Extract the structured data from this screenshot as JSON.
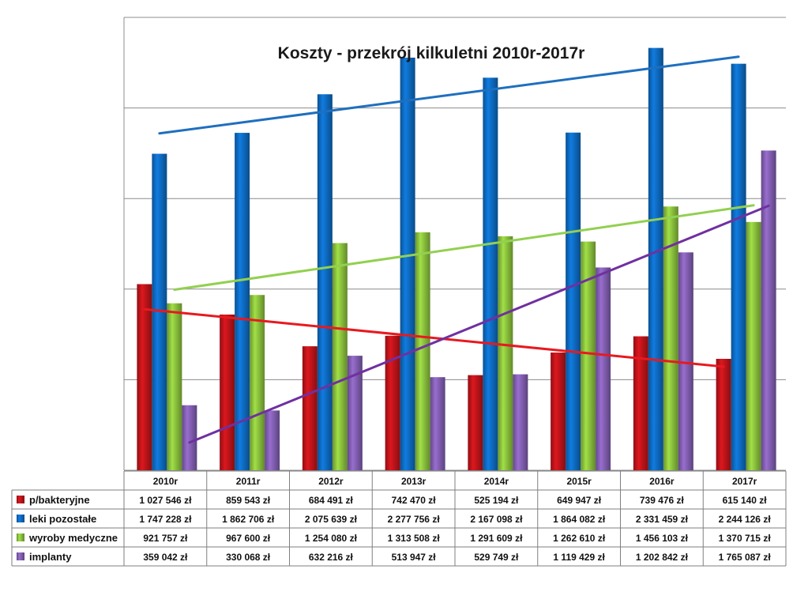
{
  "chart_data": {
    "type": "bar",
    "title": "Koszty - przekrój kilkuletni 2010r-2017r",
    "categories": [
      "2010r",
      "2011r",
      "2012r",
      "2013r",
      "2014r",
      "2015r",
      "2016r",
      "2017r"
    ],
    "ylim": [
      0,
      2500000
    ],
    "grid": true,
    "legend": "data-table-below",
    "trendlines": true,
    "series": [
      {
        "name": "p/bakteryjne",
        "color": "#c0141a",
        "values": [
          1027546,
          859543,
          684491,
          742470,
          525194,
          649947,
          739476,
          615140
        ],
        "labels": [
          "1 027 546 zł",
          "859 543 zł",
          "684 491 zł",
          "742 470 zł",
          "525 194 zł",
          "649 947 zł",
          "739 476 zł",
          "615 140 zł"
        ],
        "trend_color": "#e8191f"
      },
      {
        "name": "leki pozostałe",
        "color": "#0e6cc4",
        "values": [
          1747228,
          1862706,
          2075639,
          2277756,
          2167098,
          1864082,
          2331459,
          2244126
        ],
        "labels": [
          "1 747 228 zł",
          "1 862 706 zł",
          "2 075 639 zł",
          "2 277 756 zł",
          "2 167 098 zł",
          "1 864 082 zł",
          "2 331 459 zł",
          "2 244 126 zł"
        ],
        "trend_color": "#1f6fbf"
      },
      {
        "name": "wyroby medyczne",
        "color": "#8cc33e",
        "values": [
          921757,
          967600,
          1254080,
          1313508,
          1291609,
          1262610,
          1456103,
          1370715
        ],
        "labels": [
          "921 757 zł",
          "967 600 zł",
          "1 254 080 zł",
          "1 313 508 zł",
          "1 291 609 zł",
          "1 262 610 zł",
          "1 456 103 zł",
          "1 370 715 zł"
        ],
        "trend_color": "#92d050"
      },
      {
        "name": "implanty",
        "color": "#8460b4",
        "values": [
          359042,
          330068,
          632216,
          513947,
          529749,
          1119429,
          1202842,
          1765087
        ],
        "labels": [
          "359 042 zł",
          "330 068 zł",
          "632 216 zł",
          "513 947 zł",
          "529 749 zł",
          "1 119 429 zł",
          "1 202 842 zł",
          "1 765 087 zł"
        ],
        "trend_color": "#7030a0"
      }
    ]
  }
}
